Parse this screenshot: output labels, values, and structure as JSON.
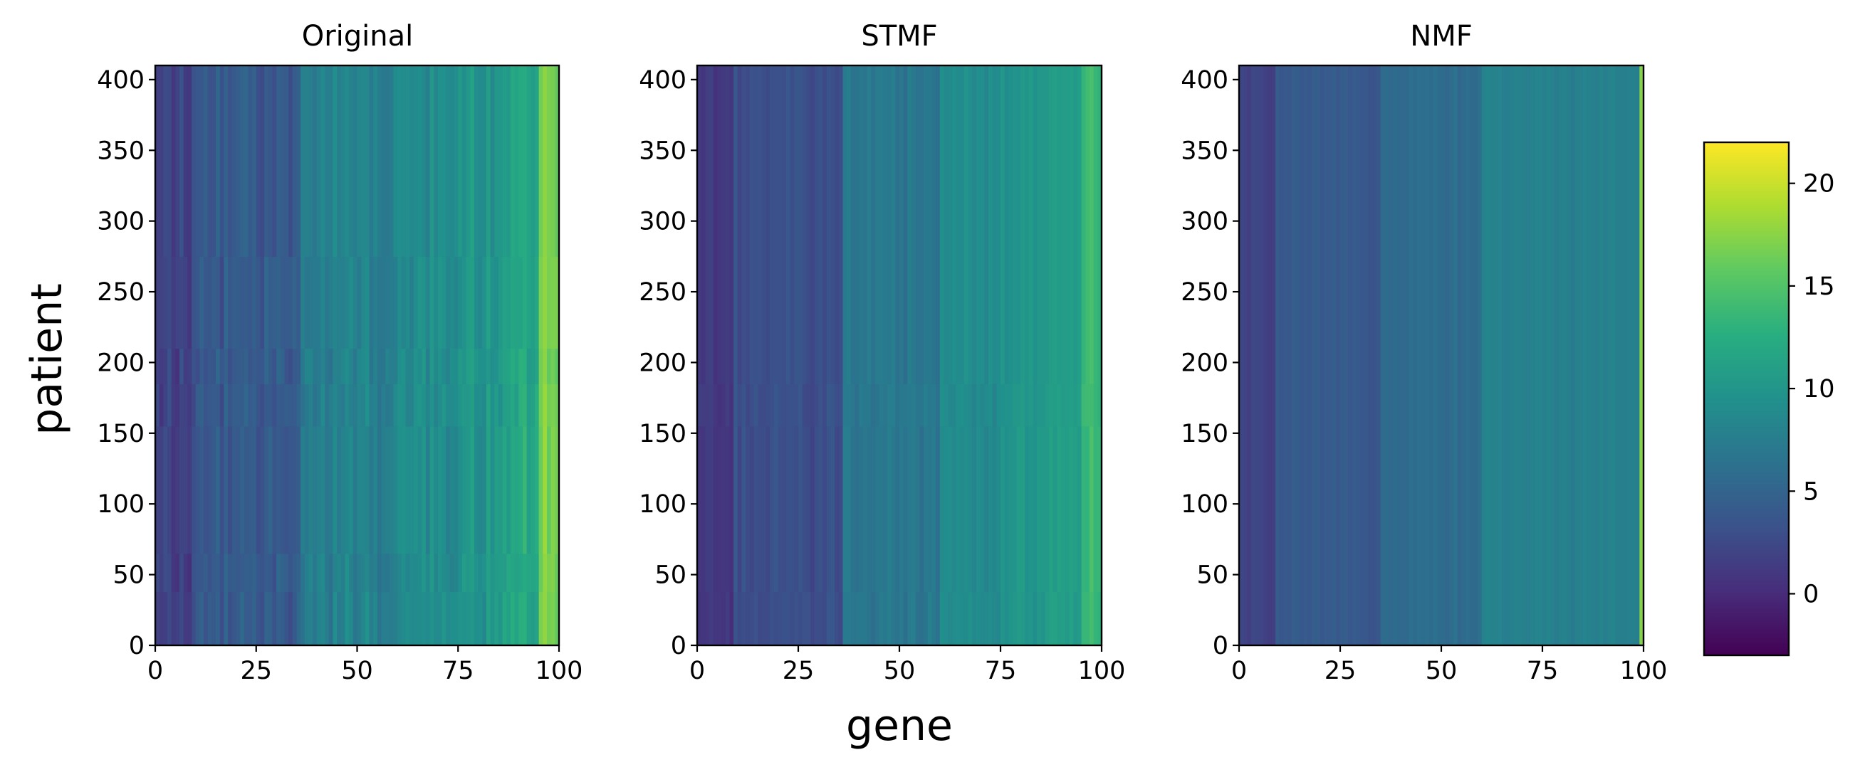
{
  "chart_data": {
    "type": "heatmap",
    "xlabel": "gene",
    "ylabel": "patient",
    "colormap": "viridis",
    "color_range": [
      -3,
      22
    ],
    "colorbar_ticks": [
      "0",
      "5",
      "10",
      "15",
      "20"
    ],
    "colorbar_tick_values": [
      0,
      5,
      10,
      15,
      20
    ],
    "panels": [
      {
        "title": "Original",
        "xlim": [
          0,
          100
        ],
        "ylim": [
          0,
          410
        ],
        "xticks": [
          "0",
          "25",
          "50",
          "75",
          "100"
        ],
        "yticks": [
          "0",
          "50",
          "100",
          "150",
          "200",
          "250",
          "300",
          "350",
          "400"
        ],
        "column_profile": {
          "gene_breaks": [
            0,
            9,
            36,
            60,
            75,
            86,
            95,
            100
          ],
          "approx_values": [
            2,
            4,
            8,
            9,
            10,
            12,
            17
          ]
        },
        "row_breaks": [
          38,
          65,
          155,
          185,
          210,
          275
        ]
      },
      {
        "title": "STMF",
        "xlim": [
          0,
          100
        ],
        "ylim": [
          0,
          410
        ],
        "xticks": [
          "0",
          "25",
          "50",
          "75",
          "100"
        ],
        "yticks": [
          "0",
          "50",
          "100",
          "150",
          "200",
          "250",
          "300",
          "350",
          "400"
        ],
        "column_profile": {
          "gene_breaks": [
            0,
            9,
            36,
            60,
            75,
            86,
            95,
            100
          ],
          "approx_values": [
            1,
            3,
            7,
            9,
            10,
            11,
            14
          ]
        },
        "row_breaks": [
          38,
          155,
          185
        ]
      },
      {
        "title": "NMF",
        "xlim": [
          0,
          100
        ],
        "ylim": [
          0,
          410
        ],
        "xticks": [
          "0",
          "25",
          "50",
          "75",
          "100"
        ],
        "yticks": [
          "0",
          "50",
          "100",
          "150",
          "200",
          "250",
          "300",
          "350",
          "400"
        ],
        "column_profile": {
          "gene_breaks": [
            0,
            9,
            35,
            60,
            99,
            100
          ],
          "approx_values": [
            2,
            4,
            6,
            8,
            17
          ]
        },
        "row_breaks": []
      }
    ]
  }
}
